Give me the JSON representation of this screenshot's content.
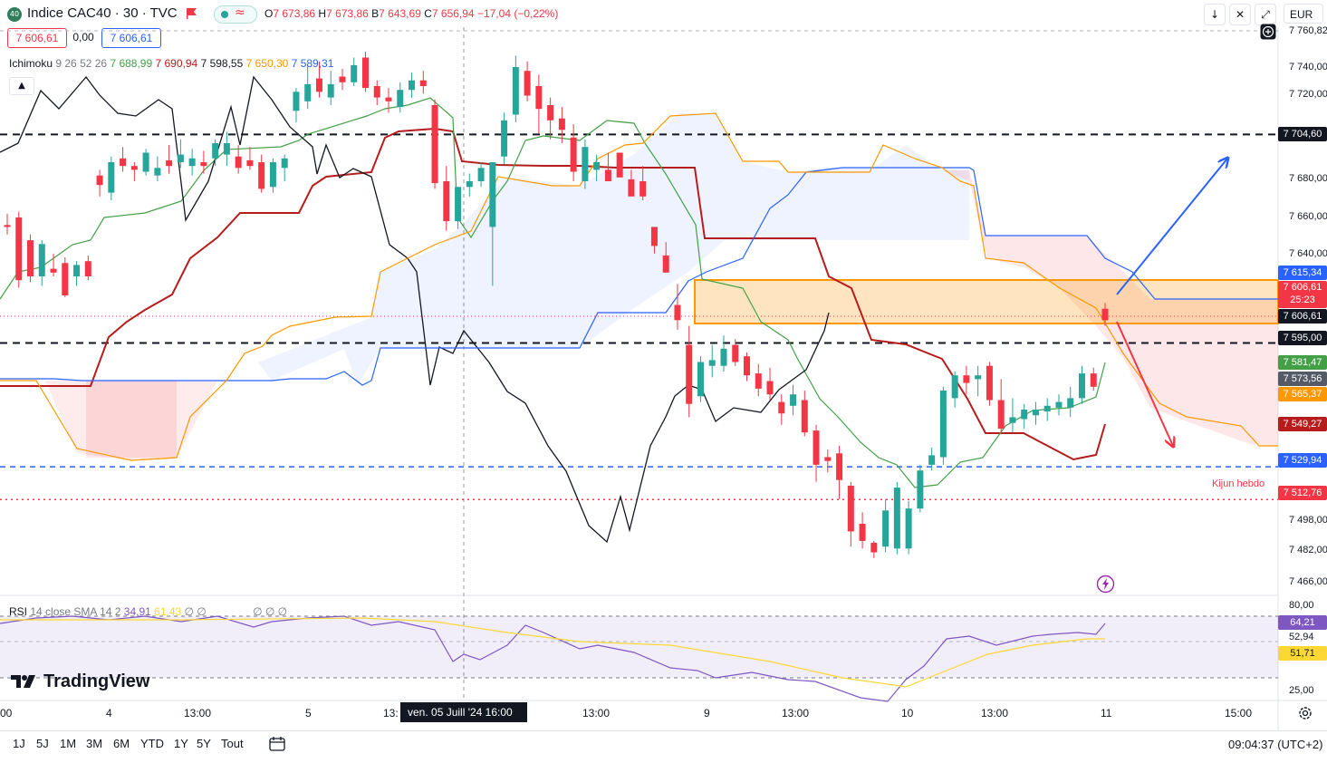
{
  "header": {
    "logo_text": "40",
    "title": "Indice CAC40 · 30 · TVC",
    "ohlc": {
      "o_label": "O",
      "o": "7 673,86",
      "h_label": "H",
      "h": "7 673,86",
      "l_label": "B",
      "l": "7 643,69",
      "c_label": "C",
      "c": "7 656,94",
      "chg": "−17,04 (−0,22%)"
    },
    "currency": "EUR",
    "buttons": [
      "down-arrow-icon",
      "compare-icon",
      "fullscreen-icon"
    ]
  },
  "trade": {
    "sell": "7 606,61",
    "spread": "0,00",
    "buy": "7 606,61"
  },
  "ichimoku": {
    "label": "Ichimoku",
    "params": "9 26 52 26",
    "v1": "7 688,99",
    "v2": "7 690,94",
    "v3": "7 598,55",
    "v4": "7 650,30",
    "v5": "7 589,31"
  },
  "rsi": {
    "label": "RSI",
    "params": "14 close SMA 14 2",
    "v1": "34,91",
    "v2": "61,43",
    "na": "∅ ∅",
    "na2": "∅ ∅ ∅"
  },
  "price_axis": {
    "labels": [
      "7 740,00",
      "7 720,00",
      "7 680,00",
      "7 660,00",
      "7 640,00",
      "7 498,00",
      "7 482,00",
      "7 466,00"
    ],
    "top_label": "7 760,82"
  },
  "rsi_axis": {
    "labels": [
      "80,00",
      "52,94",
      "25,00"
    ]
  },
  "tags": {
    "t7704": "7 704,60",
    "t7615": "7 615,34",
    "t7606": "7 606,61",
    "countdown": "25:23",
    "t7606b": "7 606,61",
    "t7595": "7 595,00",
    "t7581": "7 581,47",
    "t7573": "7 573,56",
    "t7565": "7 565,37",
    "t7549": "7 549,27",
    "t7529": "7 529,94",
    "t7512": "7 512,76",
    "rsi64": "64,21",
    "rsi51": "51,71"
  },
  "kijun_label": "Kijun hebdo",
  "time_axis": [
    "00",
    "4",
    "13:00",
    "5",
    "13:",
    "13:00",
    "9",
    "13:00",
    "10",
    "13:00",
    "11",
    "15:00"
  ],
  "cursor_date": "ven. 05 Juill '24   16:00",
  "brand": "TradingView",
  "ranges": [
    "1J",
    "5J",
    "1M",
    "3M",
    "6M",
    "YTD",
    "1Y",
    "5Y",
    "Tout"
  ],
  "clock": "09:04:37 (UTC+2)",
  "colors": {
    "up": "#26a69a",
    "down": "#f23645",
    "kijun": "#b71c1c",
    "tenkan": "#43a047",
    "chikou": "#131722",
    "spanA": "#ff9800",
    "spanB": "#2962ff",
    "rsi": "#7e57c2",
    "rsi_ma": "#fdd835"
  },
  "chart_data": {
    "type": "candlestick",
    "price_scale": {
      "min": 7466,
      "max": 7760
    },
    "candles_ohlc": [
      [
        7657,
        7663,
        7652,
        7656
      ],
      [
        7661,
        7664,
        7624,
        7628
      ],
      [
        7649,
        7652,
        7627,
        7630
      ],
      [
        7630,
        7649,
        7625,
        7647
      ],
      [
        7634,
        7642,
        7630,
        7632
      ],
      [
        7637,
        7640,
        7619,
        7620
      ],
      [
        7630,
        7638,
        7625,
        7636
      ],
      [
        7638,
        7641,
        7628,
        7630
      ],
      [
        7683,
        7686,
        7672,
        7678
      ],
      [
        7674,
        7693,
        7670,
        7690
      ],
      [
        7692,
        7698,
        7685,
        7688
      ],
      [
        7688,
        7690,
        7680,
        7686
      ],
      [
        7685,
        7697,
        7683,
        7695
      ],
      [
        7683,
        7693,
        7680,
        7687
      ],
      [
        7691,
        7699,
        7684,
        7688
      ],
      [
        7690,
        7702,
        7687,
        7694
      ],
      [
        7688,
        7697,
        7683,
        7692
      ],
      [
        7690,
        7696,
        7684,
        7688
      ],
      [
        7692,
        7702,
        7688,
        7700
      ],
      [
        7694,
        7706,
        7688,
        7700
      ],
      [
        7693,
        7699,
        7684,
        7687
      ],
      [
        7691,
        7698,
        7686,
        7688
      ],
      [
        7690,
        7694,
        7674,
        7676
      ],
      [
        7677,
        7692,
        7674,
        7690
      ],
      [
        7687,
        7694,
        7680,
        7692
      ],
      [
        7717,
        7729,
        7711,
        7727
      ],
      [
        7722,
        7741,
        7718,
        7731
      ],
      [
        7734,
        7743,
        7724,
        7727
      ],
      [
        7724,
        7738,
        7720,
        7731
      ],
      [
        7735,
        7739,
        7728,
        7732
      ],
      [
        7732,
        7745,
        7730,
        7741
      ],
      [
        7745,
        7748,
        7727,
        7729
      ],
      [
        7730,
        7733,
        7720,
        7724
      ],
      [
        7724,
        7729,
        7716,
        7722
      ],
      [
        7719,
        7732,
        7716,
        7728
      ],
      [
        7728,
        7737,
        7724,
        7733
      ],
      [
        7733,
        7738,
        7726,
        7730
      ],
      [
        7720,
        7723,
        7676,
        7679
      ],
      [
        7680,
        7688,
        7654,
        7659
      ],
      [
        7659,
        7677,
        7655,
        7677
      ],
      [
        7677,
        7684,
        7672,
        7680
      ],
      [
        7680,
        7690,
        7677,
        7687
      ],
      [
        7656,
        7682,
        7625,
        7690
      ],
      [
        7693,
        7716,
        7689,
        7712
      ],
      [
        7715,
        7746,
        7711,
        7740
      ],
      [
        7738,
        7743,
        7722,
        7725
      ],
      [
        7730,
        7736,
        7705,
        7718
      ],
      [
        7720,
        7724,
        7702,
        7712
      ],
      [
        7713,
        7719,
        7700,
        7707
      ],
      [
        7703,
        7710,
        7680,
        7685
      ],
      [
        7680,
        7702,
        7676,
        7698
      ],
      [
        7686,
        7694,
        7680,
        7690
      ],
      [
        7686,
        7695,
        7682,
        7680
      ],
      [
        7695,
        7691,
        7686,
        7682
      ],
      [
        7681,
        7686,
        7679,
        7672
      ],
      [
        7680,
        7688,
        7670,
        7672
      ],
      [
        7656,
        7649,
        7642,
        7646
      ],
      [
        7641,
        7648,
        7632,
        7632
      ],
      [
        7615,
        7626,
        7602,
        7607
      ],
      [
        7594,
        7604,
        7556,
        7563
      ],
      [
        7567,
        7588,
        7564,
        7585
      ],
      [
        7583,
        7594,
        7577,
        7586
      ],
      [
        7583,
        7599,
        7580,
        7592
      ],
      [
        7594,
        7597,
        7583,
        7585
      ],
      [
        7588,
        7590,
        7575,
        7578
      ],
      [
        7579,
        7584,
        7567,
        7571
      ],
      [
        7575,
        7582,
        7565,
        7568
      ],
      [
        7564,
        7568,
        7552,
        7558
      ],
      [
        7562,
        7573,
        7557,
        7568
      ],
      [
        7565,
        7570,
        7546,
        7548
      ],
      [
        7549,
        7552,
        7522,
        7531
      ],
      [
        7535,
        7539,
        7527,
        7533
      ],
      [
        7537,
        7541,
        7513,
        7523
      ],
      [
        7520,
        7522,
        7488,
        7496
      ],
      [
        7500,
        7506,
        7487,
        7491
      ],
      [
        7490,
        7491,
        7482,
        7485
      ],
      [
        7488,
        7513,
        7485,
        7507
      ],
      [
        7487,
        7522,
        7484,
        7519
      ],
      [
        7487,
        7512,
        7484,
        7508
      ],
      [
        7508,
        7531,
        7506,
        7528
      ],
      [
        7531,
        7540,
        7528,
        7536
      ],
      [
        7535,
        7572,
        7531,
        7570
      ],
      [
        7566,
        7580,
        7561,
        7578
      ],
      [
        7578,
        7583,
        7568,
        7574
      ],
      [
        7576,
        7583,
        7567,
        7578
      ],
      [
        7583,
        7585,
        7562,
        7565
      ],
      [
        7565,
        7576,
        7547,
        7550
      ],
      [
        7553,
        7566,
        7548,
        7556
      ],
      [
        7555,
        7563,
        7550,
        7560
      ],
      [
        7557,
        7564,
        7552,
        7560
      ],
      [
        7559,
        7566,
        7554,
        7562
      ],
      [
        7561,
        7568,
        7557,
        7564
      ],
      [
        7561,
        7572,
        7556,
        7566
      ],
      [
        7566,
        7583,
        7563,
        7579
      ],
      [
        7579,
        7582,
        7570,
        7572
      ],
      [
        7613,
        7616,
        7604,
        7607
      ]
    ],
    "levels": [
      {
        "name": "resistance",
        "value": 7704.6,
        "style": "dashed"
      },
      {
        "name": "support",
        "value": 7595.0,
        "style": "dashed"
      },
      {
        "name": "support-2",
        "value": 7529.94,
        "style": "dashed-blue"
      },
      {
        "name": "kijun-hebdo",
        "value": 7512.76,
        "style": "dotted-red"
      }
    ],
    "zone": {
      "low": 7598,
      "high": 7617
    }
  }
}
